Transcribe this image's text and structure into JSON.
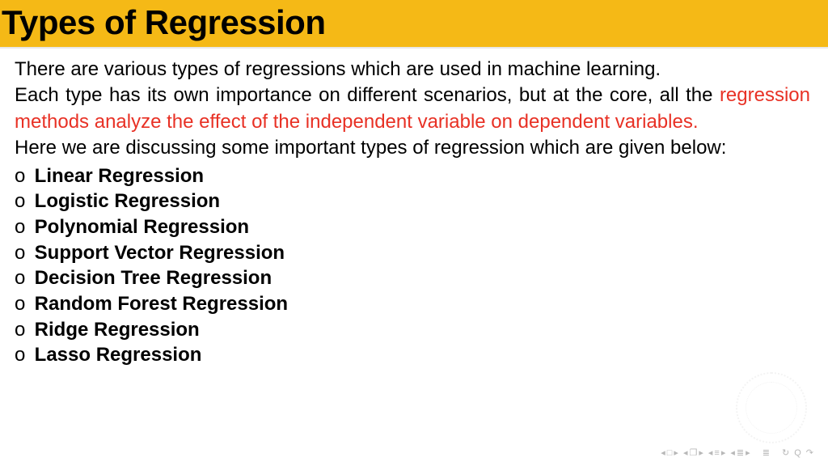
{
  "header": {
    "title": "Types of Regression",
    "bg_color": "#f5b916",
    "title_color": "#000000",
    "title_fontsize": 42
  },
  "body": {
    "line1": "There are various types of regressions which are used in machine learning.",
    "line2_pre": "Each type has its own importance on different scenarios, but at the core, all the ",
    "line2_red": "regression methods analyze the effect of the independent variable on dependent variables.",
    "line3": "Here we are discussing some important types of regression which are given below:",
    "red_color": "#e83125",
    "text_color": "#000000",
    "fontsize": 24
  },
  "list": {
    "bullet": "o",
    "item_fontweight": 800,
    "items": [
      "Linear Regression",
      "Logistic Regression",
      "Polynomial Regression",
      "Support Vector Regression",
      "Decision Tree Regression",
      "Random Forest Regression",
      "Ridge Regression",
      "Lasso Regression"
    ]
  },
  "nav": {
    "color": "#b8b8b8",
    "groups": [
      [
        "◂",
        "□",
        "▸"
      ],
      [
        "◂",
        "❐",
        "▸"
      ],
      [
        "◂",
        "≡",
        "▸"
      ],
      [
        "◂",
        "≣",
        "▸"
      ]
    ],
    "tail": [
      "≣",
      "↻",
      "Q",
      "↷"
    ]
  }
}
